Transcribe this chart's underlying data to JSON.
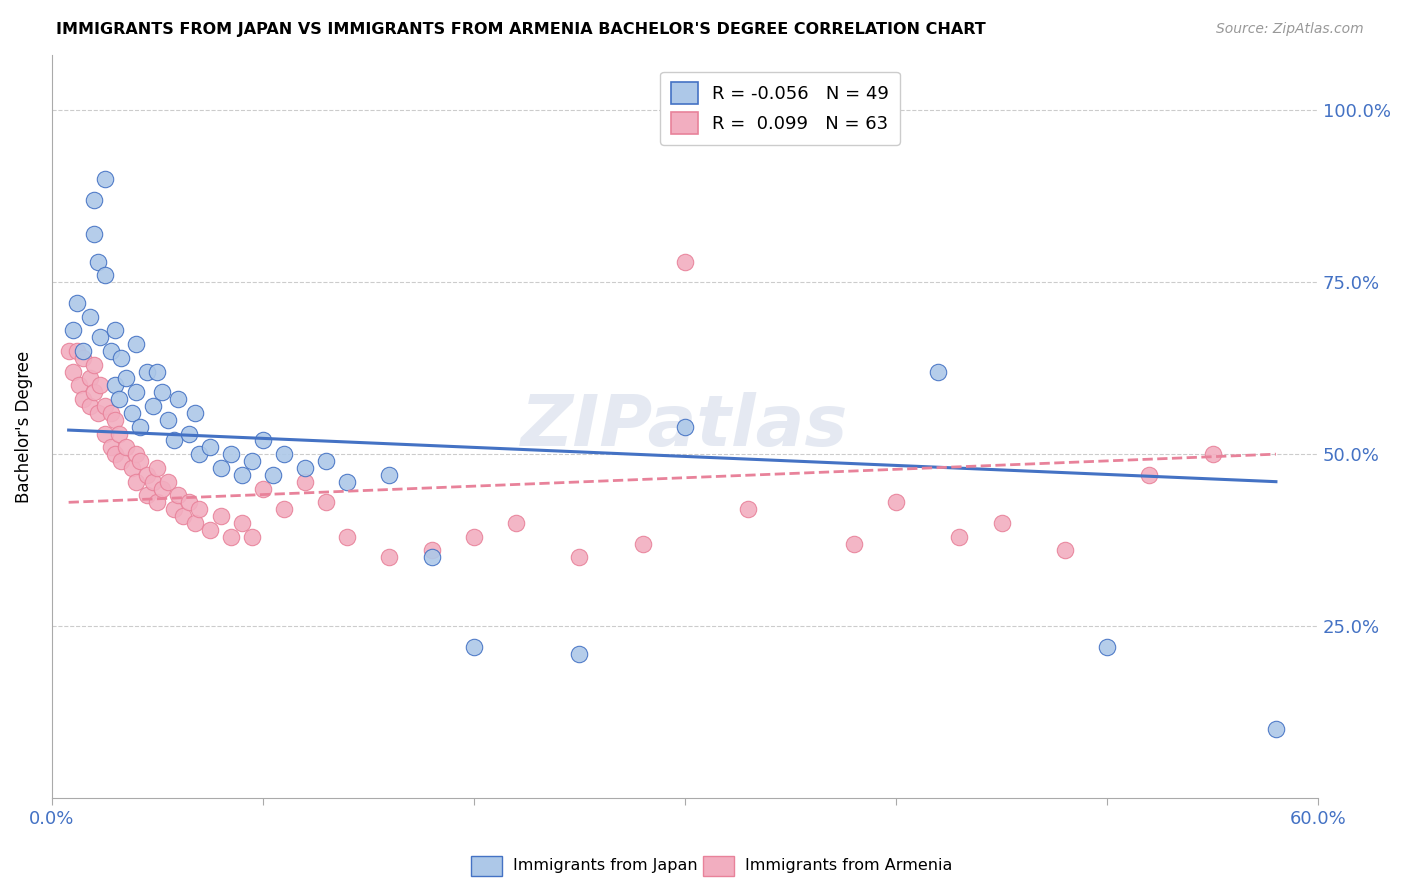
{
  "title": "IMMIGRANTS FROM JAPAN VS IMMIGRANTS FROM ARMENIA BACHELOR'S DEGREE CORRELATION CHART",
  "source": "Source: ZipAtlas.com",
  "ylabel": "Bachelor's Degree",
  "ytick_labels": [
    "100.0%",
    "75.0%",
    "50.0%",
    "25.0%"
  ],
  "ytick_values": [
    1.0,
    0.75,
    0.5,
    0.25
  ],
  "xlim": [
    0.0,
    0.6
  ],
  "ylim": [
    0.0,
    1.08
  ],
  "legend_r_japan": "-0.056",
  "legend_n_japan": "49",
  "legend_r_armenia": "0.099",
  "legend_n_armenia": "63",
  "japan_color": "#adc8e8",
  "armenia_color": "#f2aec0",
  "japan_line_color": "#4472c4",
  "armenia_line_color": "#e8829a",
  "watermark": "ZIPatlas",
  "japan_x": [
    0.01,
    0.012,
    0.015,
    0.018,
    0.02,
    0.02,
    0.022,
    0.023,
    0.025,
    0.025,
    0.028,
    0.03,
    0.03,
    0.032,
    0.033,
    0.035,
    0.038,
    0.04,
    0.04,
    0.042,
    0.045,
    0.048,
    0.05,
    0.052,
    0.055,
    0.058,
    0.06,
    0.065,
    0.068,
    0.07,
    0.075,
    0.08,
    0.085,
    0.09,
    0.095,
    0.1,
    0.105,
    0.11,
    0.12,
    0.13,
    0.14,
    0.16,
    0.18,
    0.2,
    0.25,
    0.3,
    0.42,
    0.5,
    0.58
  ],
  "japan_y": [
    0.68,
    0.72,
    0.65,
    0.7,
    0.87,
    0.82,
    0.78,
    0.67,
    0.9,
    0.76,
    0.65,
    0.6,
    0.68,
    0.58,
    0.64,
    0.61,
    0.56,
    0.66,
    0.59,
    0.54,
    0.62,
    0.57,
    0.62,
    0.59,
    0.55,
    0.52,
    0.58,
    0.53,
    0.56,
    0.5,
    0.51,
    0.48,
    0.5,
    0.47,
    0.49,
    0.52,
    0.47,
    0.5,
    0.48,
    0.49,
    0.46,
    0.47,
    0.35,
    0.22,
    0.21,
    0.54,
    0.62,
    0.22,
    0.1
  ],
  "armenia_x": [
    0.008,
    0.01,
    0.012,
    0.013,
    0.015,
    0.015,
    0.018,
    0.018,
    0.02,
    0.02,
    0.022,
    0.023,
    0.025,
    0.025,
    0.028,
    0.028,
    0.03,
    0.03,
    0.032,
    0.033,
    0.035,
    0.038,
    0.04,
    0.04,
    0.042,
    0.045,
    0.045,
    0.048,
    0.05,
    0.05,
    0.052,
    0.055,
    0.058,
    0.06,
    0.062,
    0.065,
    0.068,
    0.07,
    0.075,
    0.08,
    0.085,
    0.09,
    0.095,
    0.1,
    0.11,
    0.12,
    0.13,
    0.14,
    0.16,
    0.18,
    0.2,
    0.22,
    0.25,
    0.28,
    0.3,
    0.33,
    0.38,
    0.4,
    0.43,
    0.45,
    0.48,
    0.52,
    0.55
  ],
  "armenia_y": [
    0.65,
    0.62,
    0.65,
    0.6,
    0.58,
    0.64,
    0.61,
    0.57,
    0.63,
    0.59,
    0.56,
    0.6,
    0.57,
    0.53,
    0.56,
    0.51,
    0.55,
    0.5,
    0.53,
    0.49,
    0.51,
    0.48,
    0.5,
    0.46,
    0.49,
    0.47,
    0.44,
    0.46,
    0.48,
    0.43,
    0.45,
    0.46,
    0.42,
    0.44,
    0.41,
    0.43,
    0.4,
    0.42,
    0.39,
    0.41,
    0.38,
    0.4,
    0.38,
    0.45,
    0.42,
    0.46,
    0.43,
    0.38,
    0.35,
    0.36,
    0.38,
    0.4,
    0.35,
    0.37,
    0.78,
    0.42,
    0.37,
    0.43,
    0.38,
    0.4,
    0.36,
    0.47,
    0.5
  ],
  "japan_line_x": [
    0.008,
    0.58
  ],
  "japan_line_y": [
    0.535,
    0.46
  ],
  "armenia_line_x": [
    0.008,
    0.58
  ],
  "armenia_line_y": [
    0.43,
    0.5
  ]
}
